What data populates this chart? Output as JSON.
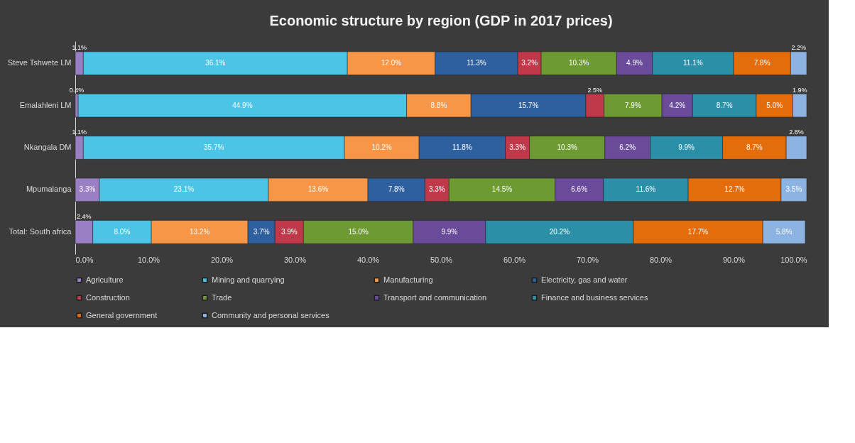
{
  "chart_data": {
    "type": "bar",
    "orientation": "horizontal",
    "stacked": true,
    "title": "Economic structure by region (GDP in 2017 prices)",
    "categories": [
      "Steve Tshwete LM",
      "Emalahleni LM",
      "Nkangala DM",
      "Mpumalanga",
      "Total: South africa"
    ],
    "series": [
      {
        "name": "Agriculture",
        "color": "#9b7fc4",
        "values": [
          1.1,
          0.4,
          1.1,
          3.3,
          2.4
        ],
        "value_labels": [
          "1.1%",
          "0.4%",
          "1.1%",
          "3.3%",
          "2.4%"
        ]
      },
      {
        "name": "Mining and quarrying",
        "color": "#4bc4e6",
        "values": [
          36.1,
          44.9,
          35.7,
          23.1,
          8.0
        ],
        "value_labels": [
          "36.1%",
          "44.9%",
          "35.7%",
          "23.1%",
          "8.0%"
        ]
      },
      {
        "name": "Manufacturing",
        "color": "#f79646",
        "values": [
          12.0,
          8.8,
          10.2,
          13.6,
          13.2
        ],
        "value_labels": [
          "12.0%",
          "8.8%",
          "10.2%",
          "13.6%",
          "13.2%"
        ]
      },
      {
        "name": "Electricity, gas and water",
        "color": "#2e5f9e",
        "values": [
          11.3,
          15.7,
          11.8,
          7.8,
          3.7
        ],
        "value_labels": [
          "11.3%",
          "15.7%",
          "11.8%",
          "7.8%",
          "3.7%"
        ]
      },
      {
        "name": "Construction",
        "color": "#c0394b",
        "values": [
          3.2,
          2.5,
          3.3,
          3.3,
          3.9
        ],
        "value_labels": [
          "3.2%",
          "2.5%",
          "3.3%",
          "3.3%",
          "3.9%"
        ]
      },
      {
        "name": "Trade",
        "color": "#6e9a34",
        "values": [
          10.3,
          7.9,
          10.3,
          14.5,
          15.0
        ],
        "value_labels": [
          "10.3%",
          "7.9%",
          "10.3%",
          "14.5%",
          "15.0%"
        ]
      },
      {
        "name": "Transport and communication",
        "color": "#6a4a9a",
        "values": [
          4.9,
          4.2,
          6.2,
          6.6,
          9.9
        ],
        "value_labels": [
          "4.9%",
          "4.2%",
          "6.2%",
          "6.6%",
          "9.9%"
        ]
      },
      {
        "name": "Finance and business services",
        "color": "#2c8fa8",
        "values": [
          11.1,
          8.7,
          9.9,
          11.6,
          20.2
        ],
        "value_labels": [
          "11.1%",
          "8.7%",
          "9.9%",
          "11.6%",
          "20.2%"
        ]
      },
      {
        "name": "General government",
        "color": "#e46c0a",
        "values": [
          7.8,
          5.0,
          8.7,
          12.7,
          17.7
        ],
        "value_labels": [
          "7.8%",
          "5.0%",
          "8.7%",
          "12.7%",
          "17.7%"
        ]
      },
      {
        "name": "Community and personal services",
        "color": "#8db3e2",
        "values": [
          2.2,
          1.9,
          2.8,
          3.5,
          5.8
        ],
        "value_labels": [
          "2.2%",
          "1.9%",
          "2.8%",
          "3.5%",
          "5.8%"
        ]
      }
    ],
    "xlim": [
      0,
      100
    ],
    "xticks": [
      {
        "value": 0,
        "label": "0.0%"
      },
      {
        "value": 10,
        "label": "10.0%"
      },
      {
        "value": 20,
        "label": "20.0%"
      },
      {
        "value": 30,
        "label": "30.0%"
      },
      {
        "value": 40,
        "label": "40.0%"
      },
      {
        "value": 50,
        "label": "50.0%"
      },
      {
        "value": 60,
        "label": "60.0%"
      },
      {
        "value": 70,
        "label": "70.0%"
      },
      {
        "value": 80,
        "label": "80.0%"
      },
      {
        "value": 90,
        "label": "90.0%"
      },
      {
        "value": 100,
        "label": "100.0%"
      }
    ],
    "legend": "bottom",
    "grid": false
  }
}
